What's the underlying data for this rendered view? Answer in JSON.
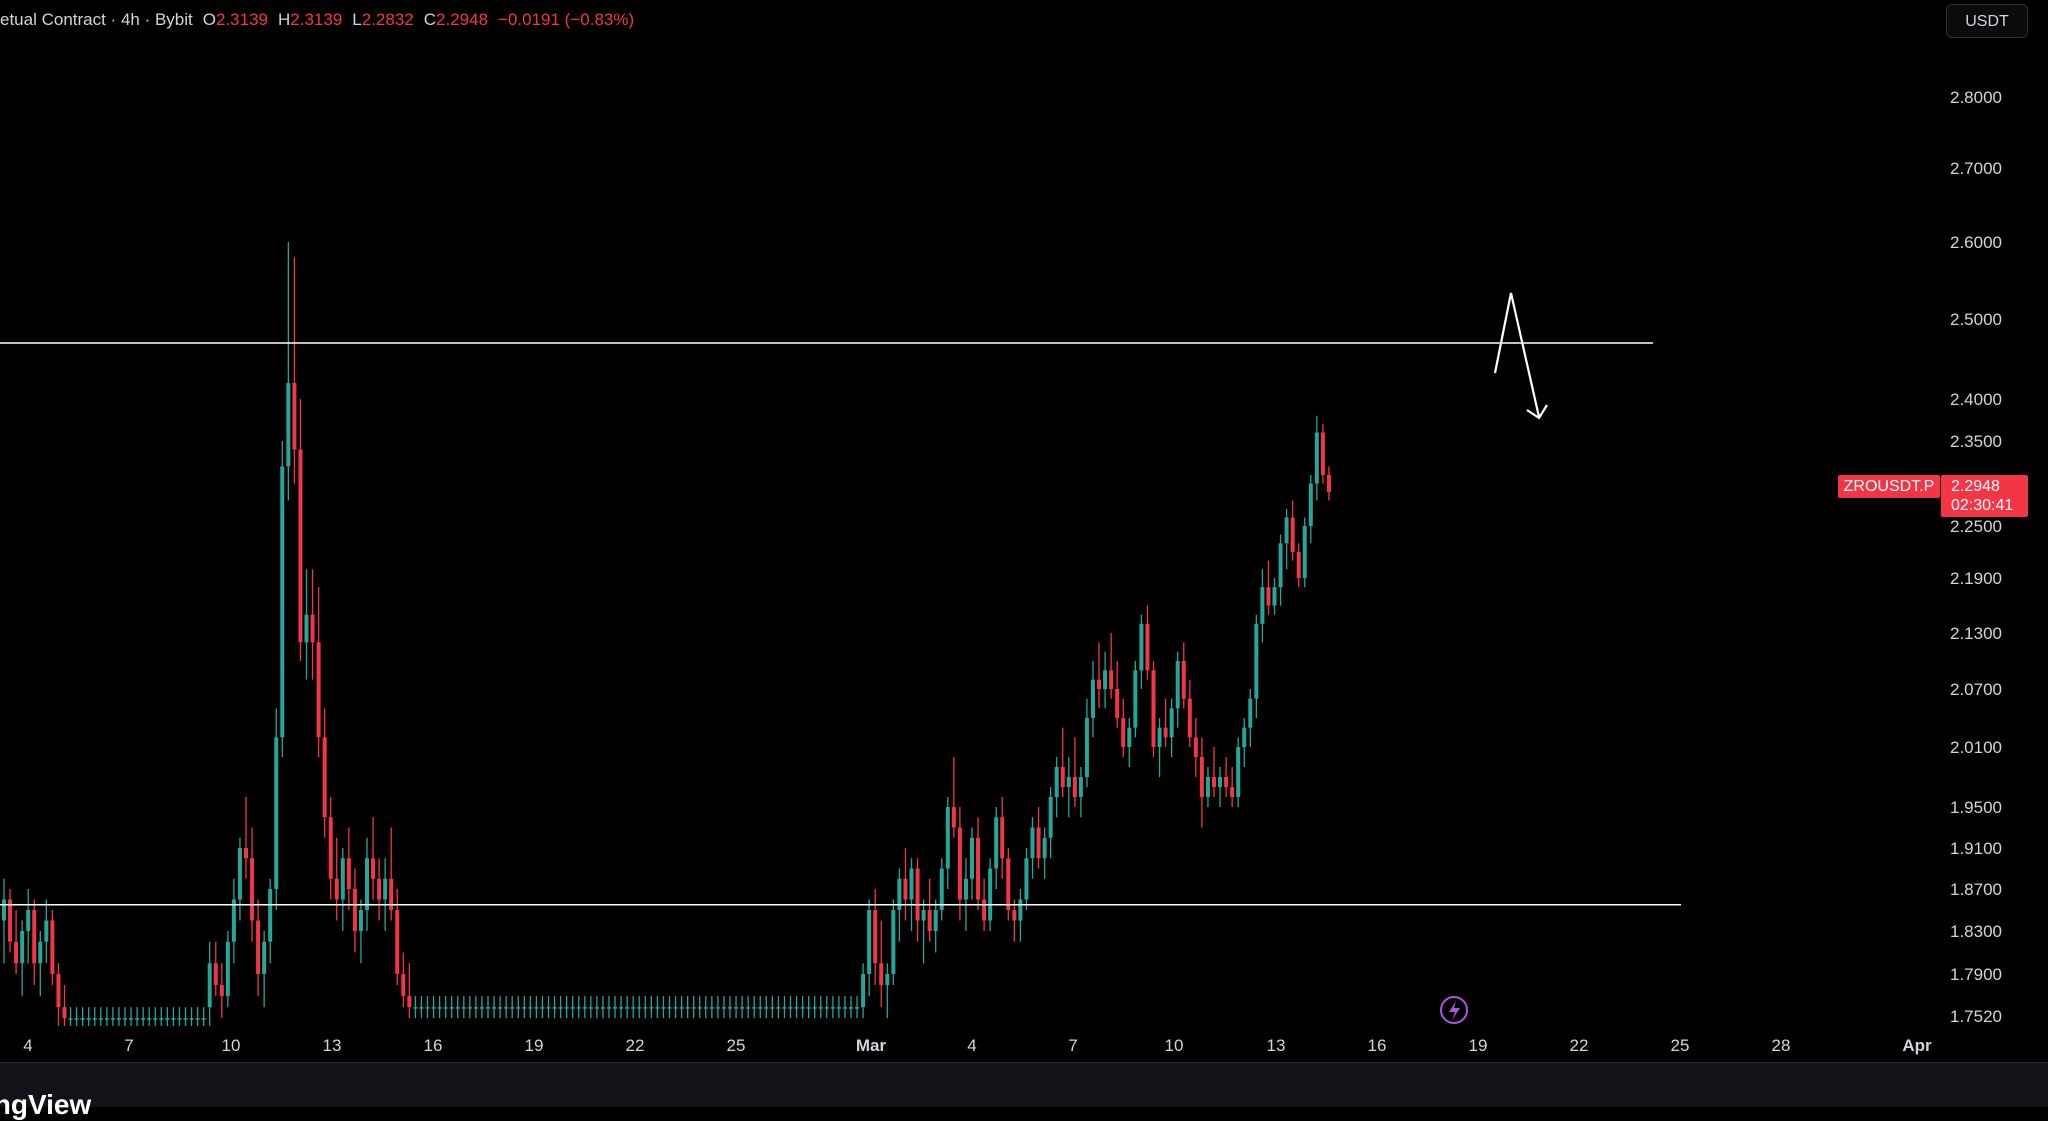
{
  "header": {
    "symbol_desc": "etual Contract · 4h · Bybit",
    "open_label": "O",
    "open": "2.3139",
    "high_label": "H",
    "high": "2.3139",
    "low_label": "L",
    "low": "2.2832",
    "close_label": "C",
    "close": "2.2948",
    "change": "−0.0191 (−0.83%)"
  },
  "currency": "USDT",
  "symbol_tag": "ZROUSDT.P",
  "price_tag": {
    "price": "2.2948",
    "countdown": "02:30:41"
  },
  "brand": "ingView",
  "colors": {
    "up": "#26a69a",
    "down": "#f23645",
    "background": "#000000",
    "line": "#ffffff"
  },
  "chart_data": {
    "type": "candlestick",
    "interval": "4h",
    "y_axis_ticks": [
      "2.8000",
      "2.7000",
      "2.6000",
      "2.5000",
      "2.4000",
      "2.3500",
      "2.2500",
      "2.1900",
      "2.1300",
      "2.0700",
      "2.0100",
      "1.9500",
      "1.9100",
      "1.8700",
      "1.8300",
      "1.7900",
      "1.7520"
    ],
    "x_axis_ticks": [
      "4",
      "7",
      "10",
      "13",
      "16",
      "19",
      "22",
      "25",
      "Mar",
      "4",
      "7",
      "10",
      "13",
      "16",
      "19",
      "22",
      "25",
      "28",
      "Apr"
    ],
    "horizontal_levels": [
      2.47,
      1.855
    ],
    "drawing": "arrow",
    "last_price": 2.2948,
    "candles": [
      [
        1.84,
        1.88,
        1.8,
        1.86
      ],
      [
        1.86,
        1.87,
        1.81,
        1.82
      ],
      [
        1.82,
        1.85,
        1.79,
        1.8
      ],
      [
        1.8,
        1.84,
        1.77,
        1.83
      ],
      [
        1.83,
        1.87,
        1.8,
        1.85
      ],
      [
        1.85,
        1.86,
        1.78,
        1.8
      ],
      [
        1.8,
        1.83,
        1.77,
        1.82
      ],
      [
        1.82,
        1.86,
        1.8,
        1.84
      ],
      [
        1.84,
        1.85,
        1.78,
        1.79
      ],
      [
        1.79,
        1.8,
        1.74,
        1.76
      ],
      [
        1.76,
        1.78,
        1.74,
        1.75
      ],
      [
        1.75,
        1.76,
        1.74,
        1.75
      ],
      [
        1.75,
        1.76,
        1.74,
        1.75
      ],
      [
        1.75,
        1.76,
        1.74,
        1.75
      ],
      [
        1.75,
        1.76,
        1.74,
        1.75
      ],
      [
        1.75,
        1.76,
        1.74,
        1.75
      ],
      [
        1.75,
        1.76,
        1.74,
        1.75
      ],
      [
        1.75,
        1.76,
        1.74,
        1.75
      ],
      [
        1.75,
        1.76,
        1.74,
        1.75
      ],
      [
        1.75,
        1.76,
        1.74,
        1.75
      ],
      [
        1.75,
        1.76,
        1.74,
        1.75
      ],
      [
        1.75,
        1.76,
        1.74,
        1.75
      ],
      [
        1.75,
        1.76,
        1.74,
        1.75
      ],
      [
        1.75,
        1.76,
        1.74,
        1.75
      ],
      [
        1.75,
        1.76,
        1.74,
        1.75
      ],
      [
        1.75,
        1.76,
        1.74,
        1.75
      ],
      [
        1.75,
        1.76,
        1.74,
        1.75
      ],
      [
        1.75,
        1.76,
        1.74,
        1.75
      ],
      [
        1.75,
        1.76,
        1.74,
        1.75
      ],
      [
        1.75,
        1.76,
        1.74,
        1.75
      ],
      [
        1.75,
        1.76,
        1.74,
        1.75
      ],
      [
        1.75,
        1.76,
        1.74,
        1.75
      ],
      [
        1.75,
        1.76,
        1.74,
        1.75
      ],
      [
        1.75,
        1.76,
        1.74,
        1.75
      ],
      [
        1.76,
        1.82,
        1.74,
        1.8
      ],
      [
        1.8,
        1.82,
        1.77,
        1.78
      ],
      [
        1.78,
        1.8,
        1.75,
        1.77
      ],
      [
        1.77,
        1.83,
        1.76,
        1.82
      ],
      [
        1.82,
        1.88,
        1.8,
        1.86
      ],
      [
        1.86,
        1.92,
        1.84,
        1.91
      ],
      [
        1.91,
        1.96,
        1.88,
        1.9
      ],
      [
        1.9,
        1.93,
        1.82,
        1.84
      ],
      [
        1.84,
        1.86,
        1.77,
        1.79
      ],
      [
        1.79,
        1.83,
        1.76,
        1.82
      ],
      [
        1.82,
        1.88,
        1.8,
        1.87
      ],
      [
        1.87,
        2.05,
        1.85,
        2.02
      ],
      [
        2.02,
        2.35,
        2.0,
        2.32
      ],
      [
        2.32,
        2.6,
        2.28,
        2.42
      ],
      [
        2.42,
        2.58,
        2.3,
        2.34
      ],
      [
        2.34,
        2.4,
        2.1,
        2.12
      ],
      [
        2.12,
        2.2,
        2.08,
        2.15
      ],
      [
        2.15,
        2.2,
        2.08,
        2.12
      ],
      [
        2.12,
        2.18,
        2.0,
        2.02
      ],
      [
        2.02,
        2.05,
        1.92,
        1.94
      ],
      [
        1.94,
        1.96,
        1.86,
        1.88
      ],
      [
        1.88,
        1.92,
        1.84,
        1.86
      ],
      [
        1.86,
        1.91,
        1.83,
        1.9
      ],
      [
        1.9,
        1.93,
        1.85,
        1.87
      ],
      [
        1.87,
        1.89,
        1.81,
        1.83
      ],
      [
        1.83,
        1.86,
        1.8,
        1.85
      ],
      [
        1.85,
        1.92,
        1.83,
        1.9
      ],
      [
        1.9,
        1.94,
        1.86,
        1.88
      ],
      [
        1.88,
        1.9,
        1.84,
        1.86
      ],
      [
        1.86,
        1.9,
        1.83,
        1.88
      ],
      [
        1.88,
        1.93,
        1.84,
        1.85
      ],
      [
        1.85,
        1.87,
        1.78,
        1.79
      ],
      [
        1.79,
        1.81,
        1.76,
        1.77
      ],
      [
        1.77,
        1.8,
        1.75,
        1.76
      ],
      [
        1.76,
        1.77,
        1.75,
        1.76
      ],
      [
        1.76,
        1.77,
        1.75,
        1.76
      ],
      [
        1.76,
        1.77,
        1.75,
        1.76
      ],
      [
        1.76,
        1.77,
        1.75,
        1.76
      ],
      [
        1.76,
        1.77,
        1.75,
        1.76
      ],
      [
        1.76,
        1.77,
        1.75,
        1.76
      ],
      [
        1.76,
        1.77,
        1.75,
        1.76
      ],
      [
        1.76,
        1.77,
        1.75,
        1.76
      ],
      [
        1.76,
        1.77,
        1.75,
        1.76
      ],
      [
        1.76,
        1.77,
        1.75,
        1.76
      ],
      [
        1.76,
        1.77,
        1.75,
        1.76
      ],
      [
        1.76,
        1.77,
        1.75,
        1.76
      ],
      [
        1.76,
        1.77,
        1.75,
        1.76
      ],
      [
        1.76,
        1.77,
        1.75,
        1.76
      ],
      [
        1.76,
        1.77,
        1.75,
        1.76
      ],
      [
        1.76,
        1.77,
        1.75,
        1.76
      ],
      [
        1.76,
        1.77,
        1.75,
        1.76
      ],
      [
        1.76,
        1.77,
        1.75,
        1.76
      ],
      [
        1.76,
        1.77,
        1.75,
        1.76
      ],
      [
        1.76,
        1.77,
        1.75,
        1.76
      ],
      [
        1.76,
        1.77,
        1.75,
        1.76
      ],
      [
        1.76,
        1.77,
        1.75,
        1.76
      ],
      [
        1.76,
        1.77,
        1.75,
        1.76
      ],
      [
        1.76,
        1.77,
        1.75,
        1.76
      ],
      [
        1.76,
        1.77,
        1.75,
        1.76
      ],
      [
        1.76,
        1.77,
        1.75,
        1.76
      ],
      [
        1.76,
        1.77,
        1.75,
        1.76
      ],
      [
        1.76,
        1.77,
        1.75,
        1.76
      ],
      [
        1.76,
        1.77,
        1.75,
        1.76
      ],
      [
        1.76,
        1.77,
        1.75,
        1.76
      ],
      [
        1.76,
        1.77,
        1.75,
        1.76
      ],
      [
        1.76,
        1.77,
        1.75,
        1.76
      ],
      [
        1.76,
        1.77,
        1.75,
        1.76
      ],
      [
        1.76,
        1.77,
        1.75,
        1.76
      ],
      [
        1.76,
        1.77,
        1.75,
        1.76
      ],
      [
        1.76,
        1.77,
        1.75,
        1.76
      ],
      [
        1.76,
        1.77,
        1.75,
        1.76
      ],
      [
        1.76,
        1.77,
        1.75,
        1.76
      ],
      [
        1.76,
        1.77,
        1.75,
        1.76
      ],
      [
        1.76,
        1.77,
        1.75,
        1.76
      ],
      [
        1.76,
        1.77,
        1.75,
        1.76
      ],
      [
        1.76,
        1.77,
        1.75,
        1.76
      ],
      [
        1.76,
        1.77,
        1.75,
        1.76
      ],
      [
        1.76,
        1.77,
        1.75,
        1.76
      ],
      [
        1.76,
        1.77,
        1.75,
        1.76
      ],
      [
        1.76,
        1.77,
        1.75,
        1.76
      ],
      [
        1.76,
        1.77,
        1.75,
        1.76
      ],
      [
        1.76,
        1.77,
        1.75,
        1.76
      ],
      [
        1.76,
        1.77,
        1.75,
        1.76
      ],
      [
        1.76,
        1.77,
        1.75,
        1.76
      ],
      [
        1.76,
        1.77,
        1.75,
        1.76
      ],
      [
        1.76,
        1.77,
        1.75,
        1.76
      ],
      [
        1.76,
        1.77,
        1.75,
        1.76
      ],
      [
        1.76,
        1.77,
        1.75,
        1.76
      ],
      [
        1.76,
        1.77,
        1.75,
        1.76
      ],
      [
        1.76,
        1.77,
        1.75,
        1.76
      ],
      [
        1.76,
        1.77,
        1.75,
        1.76
      ],
      [
        1.76,
        1.77,
        1.75,
        1.76
      ],
      [
        1.76,
        1.77,
        1.75,
        1.76
      ],
      [
        1.76,
        1.77,
        1.75,
        1.76
      ],
      [
        1.76,
        1.77,
        1.75,
        1.76
      ],
      [
        1.76,
        1.77,
        1.75,
        1.76
      ],
      [
        1.76,
        1.77,
        1.75,
        1.76
      ],
      [
        1.76,
        1.77,
        1.75,
        1.76
      ],
      [
        1.76,
        1.77,
        1.75,
        1.76
      ],
      [
        1.76,
        1.77,
        1.75,
        1.76
      ],
      [
        1.76,
        1.77,
        1.75,
        1.76
      ],
      [
        1.76,
        1.77,
        1.75,
        1.76
      ],
      [
        1.76,
        1.77,
        1.75,
        1.76
      ],
      [
        1.76,
        1.77,
        1.75,
        1.76
      ],
      [
        1.76,
        1.77,
        1.75,
        1.76
      ],
      [
        1.76,
        1.77,
        1.75,
        1.76
      ],
      [
        1.76,
        1.77,
        1.75,
        1.76
      ],
      [
        1.76,
        1.77,
        1.75,
        1.76
      ],
      [
        1.76,
        1.8,
        1.75,
        1.79
      ],
      [
        1.79,
        1.86,
        1.77,
        1.85
      ],
      [
        1.85,
        1.87,
        1.78,
        1.8
      ],
      [
        1.8,
        1.84,
        1.76,
        1.78
      ],
      [
        1.78,
        1.8,
        1.75,
        1.79
      ],
      [
        1.79,
        1.86,
        1.78,
        1.85
      ],
      [
        1.85,
        1.89,
        1.82,
        1.88
      ],
      [
        1.88,
        1.91,
        1.84,
        1.86
      ],
      [
        1.86,
        1.9,
        1.83,
        1.89
      ],
      [
        1.89,
        1.9,
        1.82,
        1.84
      ],
      [
        1.84,
        1.86,
        1.8,
        1.85
      ],
      [
        1.85,
        1.88,
        1.82,
        1.83
      ],
      [
        1.83,
        1.86,
        1.81,
        1.85
      ],
      [
        1.85,
        1.9,
        1.84,
        1.89
      ],
      [
        1.89,
        1.96,
        1.87,
        1.95
      ],
      [
        1.95,
        2.0,
        1.92,
        1.93
      ],
      [
        1.93,
        1.95,
        1.84,
        1.86
      ],
      [
        1.86,
        1.9,
        1.83,
        1.88
      ],
      [
        1.88,
        1.93,
        1.86,
        1.92
      ],
      [
        1.92,
        1.94,
        1.85,
        1.86
      ],
      [
        1.86,
        1.88,
        1.83,
        1.84
      ],
      [
        1.84,
        1.9,
        1.83,
        1.89
      ],
      [
        1.89,
        1.95,
        1.87,
        1.94
      ],
      [
        1.94,
        1.96,
        1.88,
        1.9
      ],
      [
        1.9,
        1.91,
        1.84,
        1.85
      ],
      [
        1.85,
        1.86,
        1.82,
        1.84
      ],
      [
        1.84,
        1.87,
        1.82,
        1.86
      ],
      [
        1.86,
        1.91,
        1.85,
        1.9
      ],
      [
        1.9,
        1.94,
        1.88,
        1.93
      ],
      [
        1.93,
        1.95,
        1.89,
        1.9
      ],
      [
        1.9,
        1.93,
        1.88,
        1.92
      ],
      [
        1.92,
        1.97,
        1.9,
        1.96
      ],
      [
        1.96,
        2.0,
        1.94,
        1.99
      ],
      [
        1.99,
        2.03,
        1.96,
        1.97
      ],
      [
        1.97,
        2.0,
        1.94,
        1.98
      ],
      [
        1.98,
        2.02,
        1.95,
        1.96
      ],
      [
        1.96,
        1.99,
        1.94,
        1.98
      ],
      [
        1.98,
        2.06,
        1.97,
        2.04
      ],
      [
        2.04,
        2.1,
        2.02,
        2.08
      ],
      [
        2.08,
        2.12,
        2.05,
        2.07
      ],
      [
        2.07,
        2.11,
        2.05,
        2.09
      ],
      [
        2.09,
        2.13,
        2.06,
        2.07
      ],
      [
        2.07,
        2.1,
        2.03,
        2.04
      ],
      [
        2.04,
        2.06,
        2.0,
        2.01
      ],
      [
        2.01,
        2.04,
        1.99,
        2.03
      ],
      [
        2.03,
        2.1,
        2.02,
        2.09
      ],
      [
        2.09,
        2.15,
        2.07,
        2.14
      ],
      [
        2.14,
        2.16,
        2.08,
        2.09
      ],
      [
        2.09,
        2.1,
        2.0,
        2.01
      ],
      [
        2.01,
        2.04,
        1.98,
        2.03
      ],
      [
        2.03,
        2.06,
        2.01,
        2.02
      ],
      [
        2.02,
        2.06,
        2.0,
        2.05
      ],
      [
        2.05,
        2.11,
        2.03,
        2.1
      ],
      [
        2.1,
        2.12,
        2.05,
        2.06
      ],
      [
        2.06,
        2.08,
        2.01,
        2.02
      ],
      [
        2.02,
        2.04,
        1.98,
        2.0
      ],
      [
        2.0,
        2.02,
        1.93,
        1.96
      ],
      [
        1.96,
        1.99,
        1.95,
        1.98
      ],
      [
        1.98,
        2.01,
        1.96,
        1.97
      ],
      [
        1.97,
        1.99,
        1.95,
        1.98
      ],
      [
        1.98,
        2.0,
        1.96,
        1.97
      ],
      [
        1.97,
        1.99,
        1.95,
        1.96
      ],
      [
        1.96,
        2.02,
        1.95,
        2.01
      ],
      [
        2.01,
        2.04,
        1.99,
        2.03
      ],
      [
        2.03,
        2.07,
        2.01,
        2.06
      ],
      [
        2.06,
        2.15,
        2.04,
        2.14
      ],
      [
        2.14,
        2.2,
        2.12,
        2.18
      ],
      [
        2.18,
        2.21,
        2.15,
        2.16
      ],
      [
        2.16,
        2.19,
        2.15,
        2.18
      ],
      [
        2.18,
        2.24,
        2.16,
        2.23
      ],
      [
        2.23,
        2.27,
        2.2,
        2.26
      ],
      [
        2.26,
        2.28,
        2.21,
        2.22
      ],
      [
        2.22,
        2.23,
        2.18,
        2.19
      ],
      [
        2.19,
        2.26,
        2.18,
        2.25
      ],
      [
        2.25,
        2.31,
        2.23,
        2.3
      ],
      [
        2.3,
        2.38,
        2.28,
        2.36
      ],
      [
        2.36,
        2.37,
        2.3,
        2.31
      ],
      [
        2.31,
        2.32,
        2.28,
        2.29
      ]
    ]
  }
}
